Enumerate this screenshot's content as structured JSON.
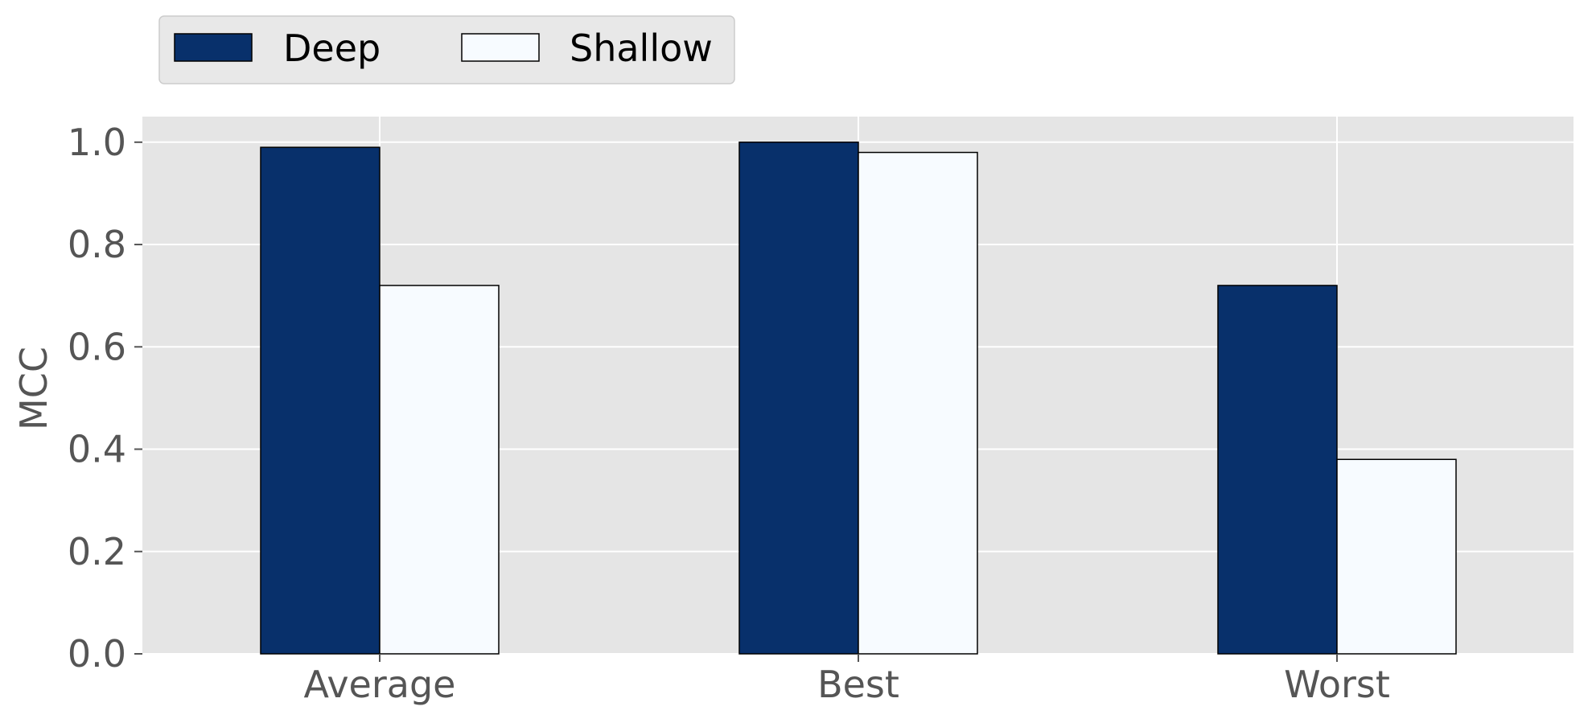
{
  "chart_data": {
    "type": "bar",
    "categories": [
      "Average",
      "Best",
      "Worst"
    ],
    "series": [
      {
        "name": "Deep",
        "values": [
          0.99,
          1.0,
          0.72
        ],
        "color": "#08306b"
      },
      {
        "name": "Shallow",
        "values": [
          0.72,
          0.98,
          0.38
        ],
        "color": "#f7fbff"
      }
    ],
    "ylabel": "MCC",
    "xlabel": "",
    "ylim": [
      0,
      1.05
    ],
    "yticks": [
      "0.0",
      "0.2",
      "0.4",
      "0.6",
      "0.8",
      "1.0"
    ],
    "grid": true,
    "legend_position": "top-left",
    "plot_background": "#e5e5e5",
    "grid_color": "#ffffff"
  }
}
